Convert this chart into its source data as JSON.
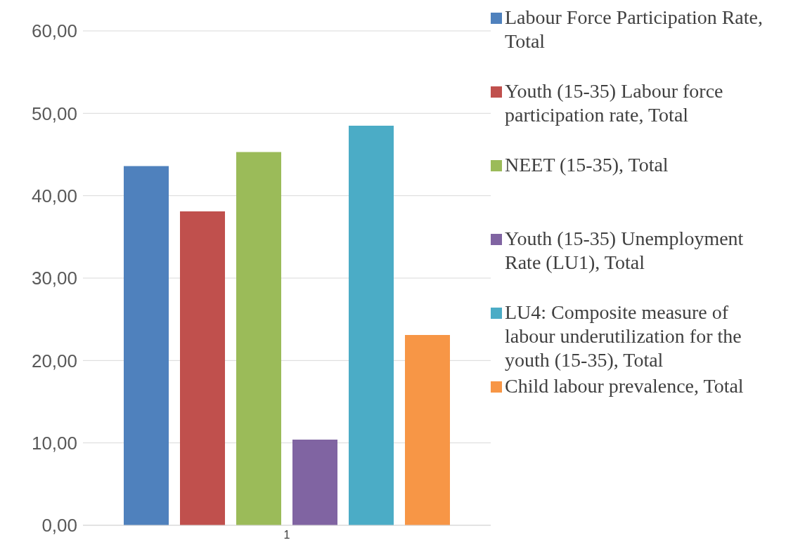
{
  "chart_data": {
    "type": "bar",
    "categories": [
      "1"
    ],
    "series": [
      {
        "name": "Labour Force Participation Rate, Total",
        "color": "#4f81bd",
        "values": [
          43.6
        ]
      },
      {
        "name": "Youth (15-35) Labour force participation rate, Total",
        "color": "#c0504d",
        "values": [
          38.1
        ]
      },
      {
        "name": "NEET (15-35), Total",
        "color": "#9bbb59",
        "values": [
          45.3
        ]
      },
      {
        "name": "Youth (15-35) Unemployment Rate (LU1), Total",
        "color": "#8064a2",
        "values": [
          10.4
        ]
      },
      {
        "name": "LU4: Composite measure of labour underutilization for the youth (15-35), Total",
        "color": "#4bacc6",
        "values": [
          48.5
        ]
      },
      {
        "name": "Child labour prevalence, Total",
        "color": "#f79646",
        "values": [
          23.1
        ]
      }
    ],
    "ylim": [
      0,
      60
    ],
    "yticks": [
      {
        "value": 0,
        "label": "0,00"
      },
      {
        "value": 10,
        "label": "10,00"
      },
      {
        "value": 20,
        "label": "20,00"
      },
      {
        "value": 30,
        "label": "30,00"
      },
      {
        "value": 40,
        "label": "40,00"
      },
      {
        "value": 50,
        "label": "50,00"
      },
      {
        "value": 60,
        "label": "60,00"
      }
    ],
    "grid": "y",
    "legend": "right"
  }
}
